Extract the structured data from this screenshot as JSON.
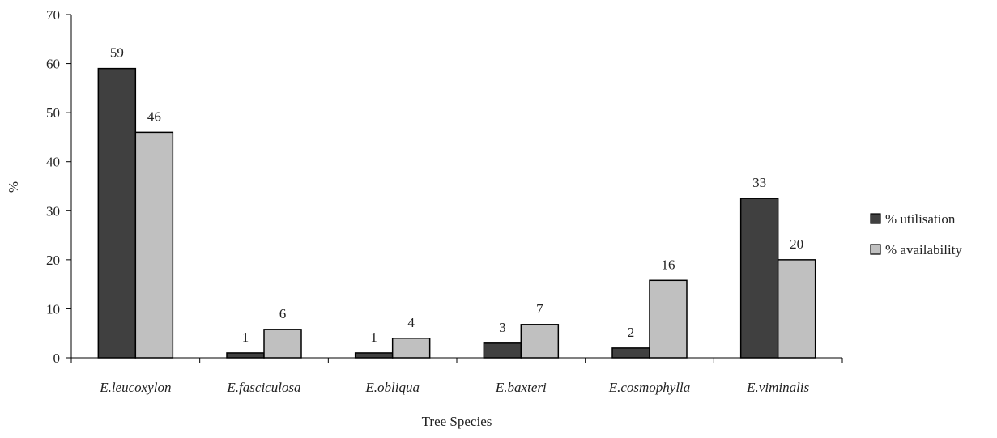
{
  "chart_data": {
    "type": "bar",
    "categories": [
      "E.leucoxylon",
      "E.fasciculosa",
      "E.obliqua",
      "E.baxteri",
      "E.cosmophylla",
      "E.viminalis"
    ],
    "series": [
      {
        "name": "% utilisation",
        "values": [
          59,
          1,
          1,
          3,
          2,
          33
        ],
        "bar_values": [
          59,
          1,
          1,
          3,
          2,
          32.5
        ],
        "color": "#404040"
      },
      {
        "name": "% availability",
        "values": [
          46,
          6,
          4,
          7,
          16,
          20
        ],
        "bar_values": [
          46,
          5.8,
          4,
          6.8,
          15.8,
          20
        ],
        "color": "#c0c0c0"
      }
    ],
    "xlabel": "Tree Species",
    "ylabel": "%",
    "ylim": [
      0,
      70
    ],
    "yticks": [
      "0",
      "10",
      "20",
      "30",
      "40",
      "50",
      "60",
      "70"
    ],
    "grid": false,
    "legend_position": "right"
  }
}
